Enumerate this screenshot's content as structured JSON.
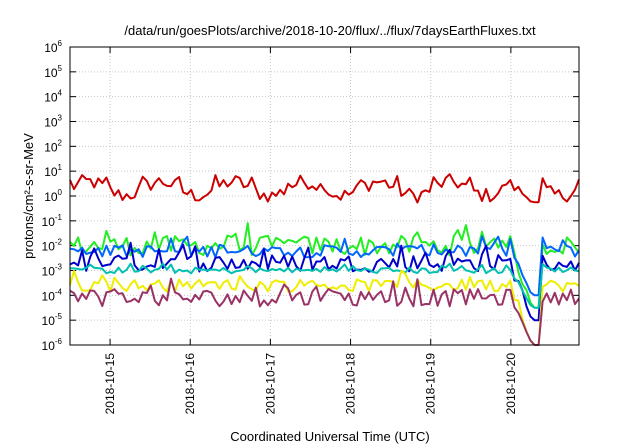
{
  "chart_data": {
    "type": "line",
    "title": "/data/run/goesPlots/archive/2018-10-20/flux/../flux/7daysEarthFluxes.txt",
    "xlabel": "Coordinated Universal Time (UTC)",
    "ylabel": "protons/cm²-s-sr-MeV",
    "y_scale": "log",
    "ylim": [
      1e-06,
      1000000.0
    ],
    "y_ticks": [
      {
        "exp": "-6"
      },
      {
        "exp": "-5"
      },
      {
        "exp": "-4"
      },
      {
        "exp": "-3"
      },
      {
        "exp": "-2"
      },
      {
        "exp": "-1"
      },
      {
        "exp": "0"
      },
      {
        "exp": "1"
      },
      {
        "exp": "2"
      },
      {
        "exp": "3"
      },
      {
        "exp": "4"
      },
      {
        "exp": "5"
      },
      {
        "exp": "6"
      }
    ],
    "y_tick_base": "10",
    "x_unit": "days since start of plot window",
    "xlim": [
      0,
      6.35
    ],
    "x_ticks": [
      {
        "x": 0.5,
        "label": "2018-10-15"
      },
      {
        "x": 1.5,
        "label": "2018-10-16"
      },
      {
        "x": 2.5,
        "label": "2018-10-17"
      },
      {
        "x": 3.5,
        "label": "2018-10-18"
      },
      {
        "x": 4.5,
        "label": "2018-10-19"
      },
      {
        "x": 5.5,
        "label": "2018-10-20"
      }
    ],
    "grid": true,
    "series": [
      {
        "color": "#cc0000",
        "base_exp": 0.3,
        "var": 0.3,
        "drop_exp": -0.25
      },
      {
        "color": "#22ee22",
        "base_exp": -2.0,
        "var": 0.4,
        "drop_exp": -4.5
      },
      {
        "color": "#0066ff",
        "base_exp": -2.22,
        "var": 0.25,
        "drop_exp": -4.0
      },
      {
        "color": "#0000cc",
        "base_exp": -2.7,
        "var": 0.35,
        "drop_exp": -5.0
      },
      {
        "color": "#00c0b0",
        "base_exp": -3.0,
        "var": 0.12,
        "drop_exp": -4.5
      },
      {
        "color": "#eeee00",
        "base_exp": -3.6,
        "var": 0.25,
        "drop_exp": -6.0
      },
      {
        "color": "#993366",
        "base_exp": -4.1,
        "var": 0.35,
        "drop_exp": -6.0
      }
    ]
  }
}
